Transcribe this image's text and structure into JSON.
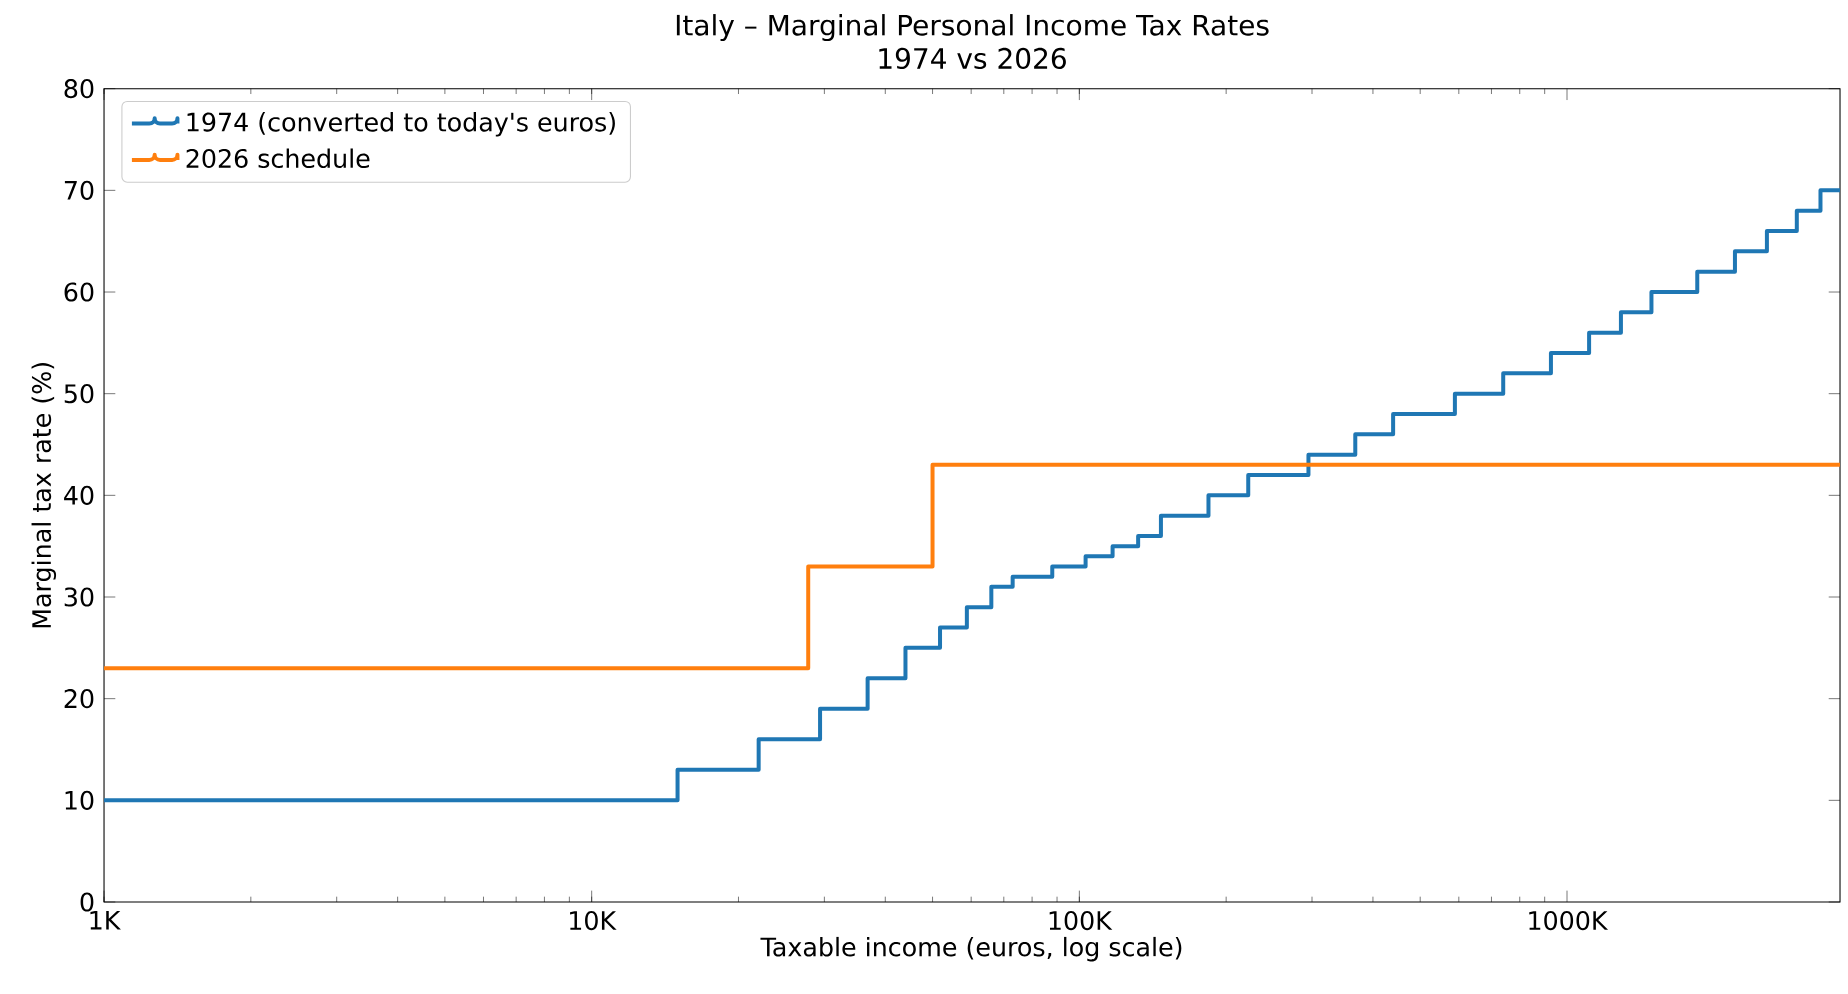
{
  "chart_data": {
    "type": "step",
    "title": "Italy – Marginal Personal Income Tax Rates",
    "subtitle": "1974 vs 2026",
    "xlabel": "Taxable income (euros, log scale)",
    "ylabel": "Marginal tax rate (%)",
    "log": "x",
    "grid": false,
    "legend": "top left",
    "marker": "none",
    "line_style": "solid",
    "xlim": [
      1000,
      3630000
    ],
    "ylim": [
      0,
      80
    ],
    "xticks": [
      {
        "value": 1000,
        "label": "1K"
      },
      {
        "value": 10000,
        "label": "10K"
      },
      {
        "value": 100000,
        "label": "100K"
      },
      {
        "value": 1000000,
        "label": "1000K"
      }
    ],
    "yticks": [
      0,
      10,
      20,
      30,
      40,
      50,
      60,
      70,
      80
    ],
    "series": [
      {
        "name": "1974 (converted to today's euros)",
        "color": "#1f77b4",
        "x": [
          1000,
          15000,
          22000,
          29400,
          36800,
          44000,
          51800,
          58800,
          66000,
          73000,
          88000,
          103000,
          117000,
          132000,
          147000,
          184000,
          222000,
          295000,
          368000,
          440000,
          589000,
          740000,
          927000,
          1110000,
          1290000,
          1490000,
          1850000,
          2210000,
          2570000,
          2960000,
          3310000,
          3630000
        ],
        "values": [
          10,
          13,
          16,
          19,
          22,
          25,
          27,
          29,
          31,
          32,
          33,
          34,
          35,
          36,
          38,
          40,
          42,
          44,
          46,
          48,
          50,
          52,
          54,
          56,
          58,
          60,
          62,
          64,
          66,
          68,
          70,
          70
        ]
      },
      {
        "name": "2026 schedule",
        "color": "#ff7f0e",
        "x": [
          1000,
          27800,
          50000,
          3630000
        ],
        "values": [
          23,
          33,
          43,
          43
        ]
      }
    ]
  }
}
